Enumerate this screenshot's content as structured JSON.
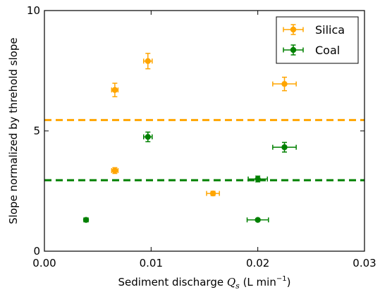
{
  "chart_data": {
    "type": "scatter",
    "xlabel": {
      "prefix": "Sediment discharge ",
      "symbol": "Q",
      "subscript": "s",
      "unit_prefix": " (L min",
      "unit_exp": "−1",
      "unit_suffix": ")"
    },
    "ylabel": "Slope normalized by threhold slope",
    "xlim": [
      0.0,
      0.03
    ],
    "ylim": [
      0,
      10
    ],
    "xticks": [
      0.0,
      0.01,
      0.02,
      0.03
    ],
    "xtick_labels": [
      "0.00",
      "0.01",
      "0.02",
      "0.03"
    ],
    "yticks": [
      0,
      5,
      10
    ],
    "ytick_labels": [
      "0",
      "5",
      "10"
    ],
    "grid": false,
    "legend_position": "top-right",
    "series": [
      {
        "name": "Silica",
        "color": "#FFA500",
        "marker": "circle",
        "points": [
          {
            "x": 0.0066,
            "y": 3.35,
            "xerr": 0.0003,
            "yerr": 0.12
          },
          {
            "x": 0.0066,
            "y": 6.7,
            "xerr": 0.0003,
            "yerr": 0.28
          },
          {
            "x": 0.0097,
            "y": 7.9,
            "xerr": 0.0004,
            "yerr": 0.32
          },
          {
            "x": 0.0158,
            "y": 2.4,
            "xerr": 0.0006,
            "yerr": 0.09
          },
          {
            "x": 0.0225,
            "y": 6.95,
            "xerr": 0.0011,
            "yerr": 0.28
          }
        ],
        "hline": 5.45
      },
      {
        "name": "Coal",
        "color": "#008000",
        "marker": "circle",
        "points": [
          {
            "x": 0.0039,
            "y": 1.3,
            "xerr": 0.0002,
            "yerr": 0.06
          },
          {
            "x": 0.0097,
            "y": 4.75,
            "xerr": 0.0004,
            "yerr": 0.2
          },
          {
            "x": 0.02,
            "y": 3.0,
            "xerr": 0.0009,
            "yerr": 0.12
          },
          {
            "x": 0.02,
            "y": 1.3,
            "xerr": 0.001,
            "yerr": 0.05
          },
          {
            "x": 0.0225,
            "y": 4.32,
            "xerr": 0.0011,
            "yerr": 0.2
          }
        ],
        "hline": 2.95
      }
    ]
  }
}
